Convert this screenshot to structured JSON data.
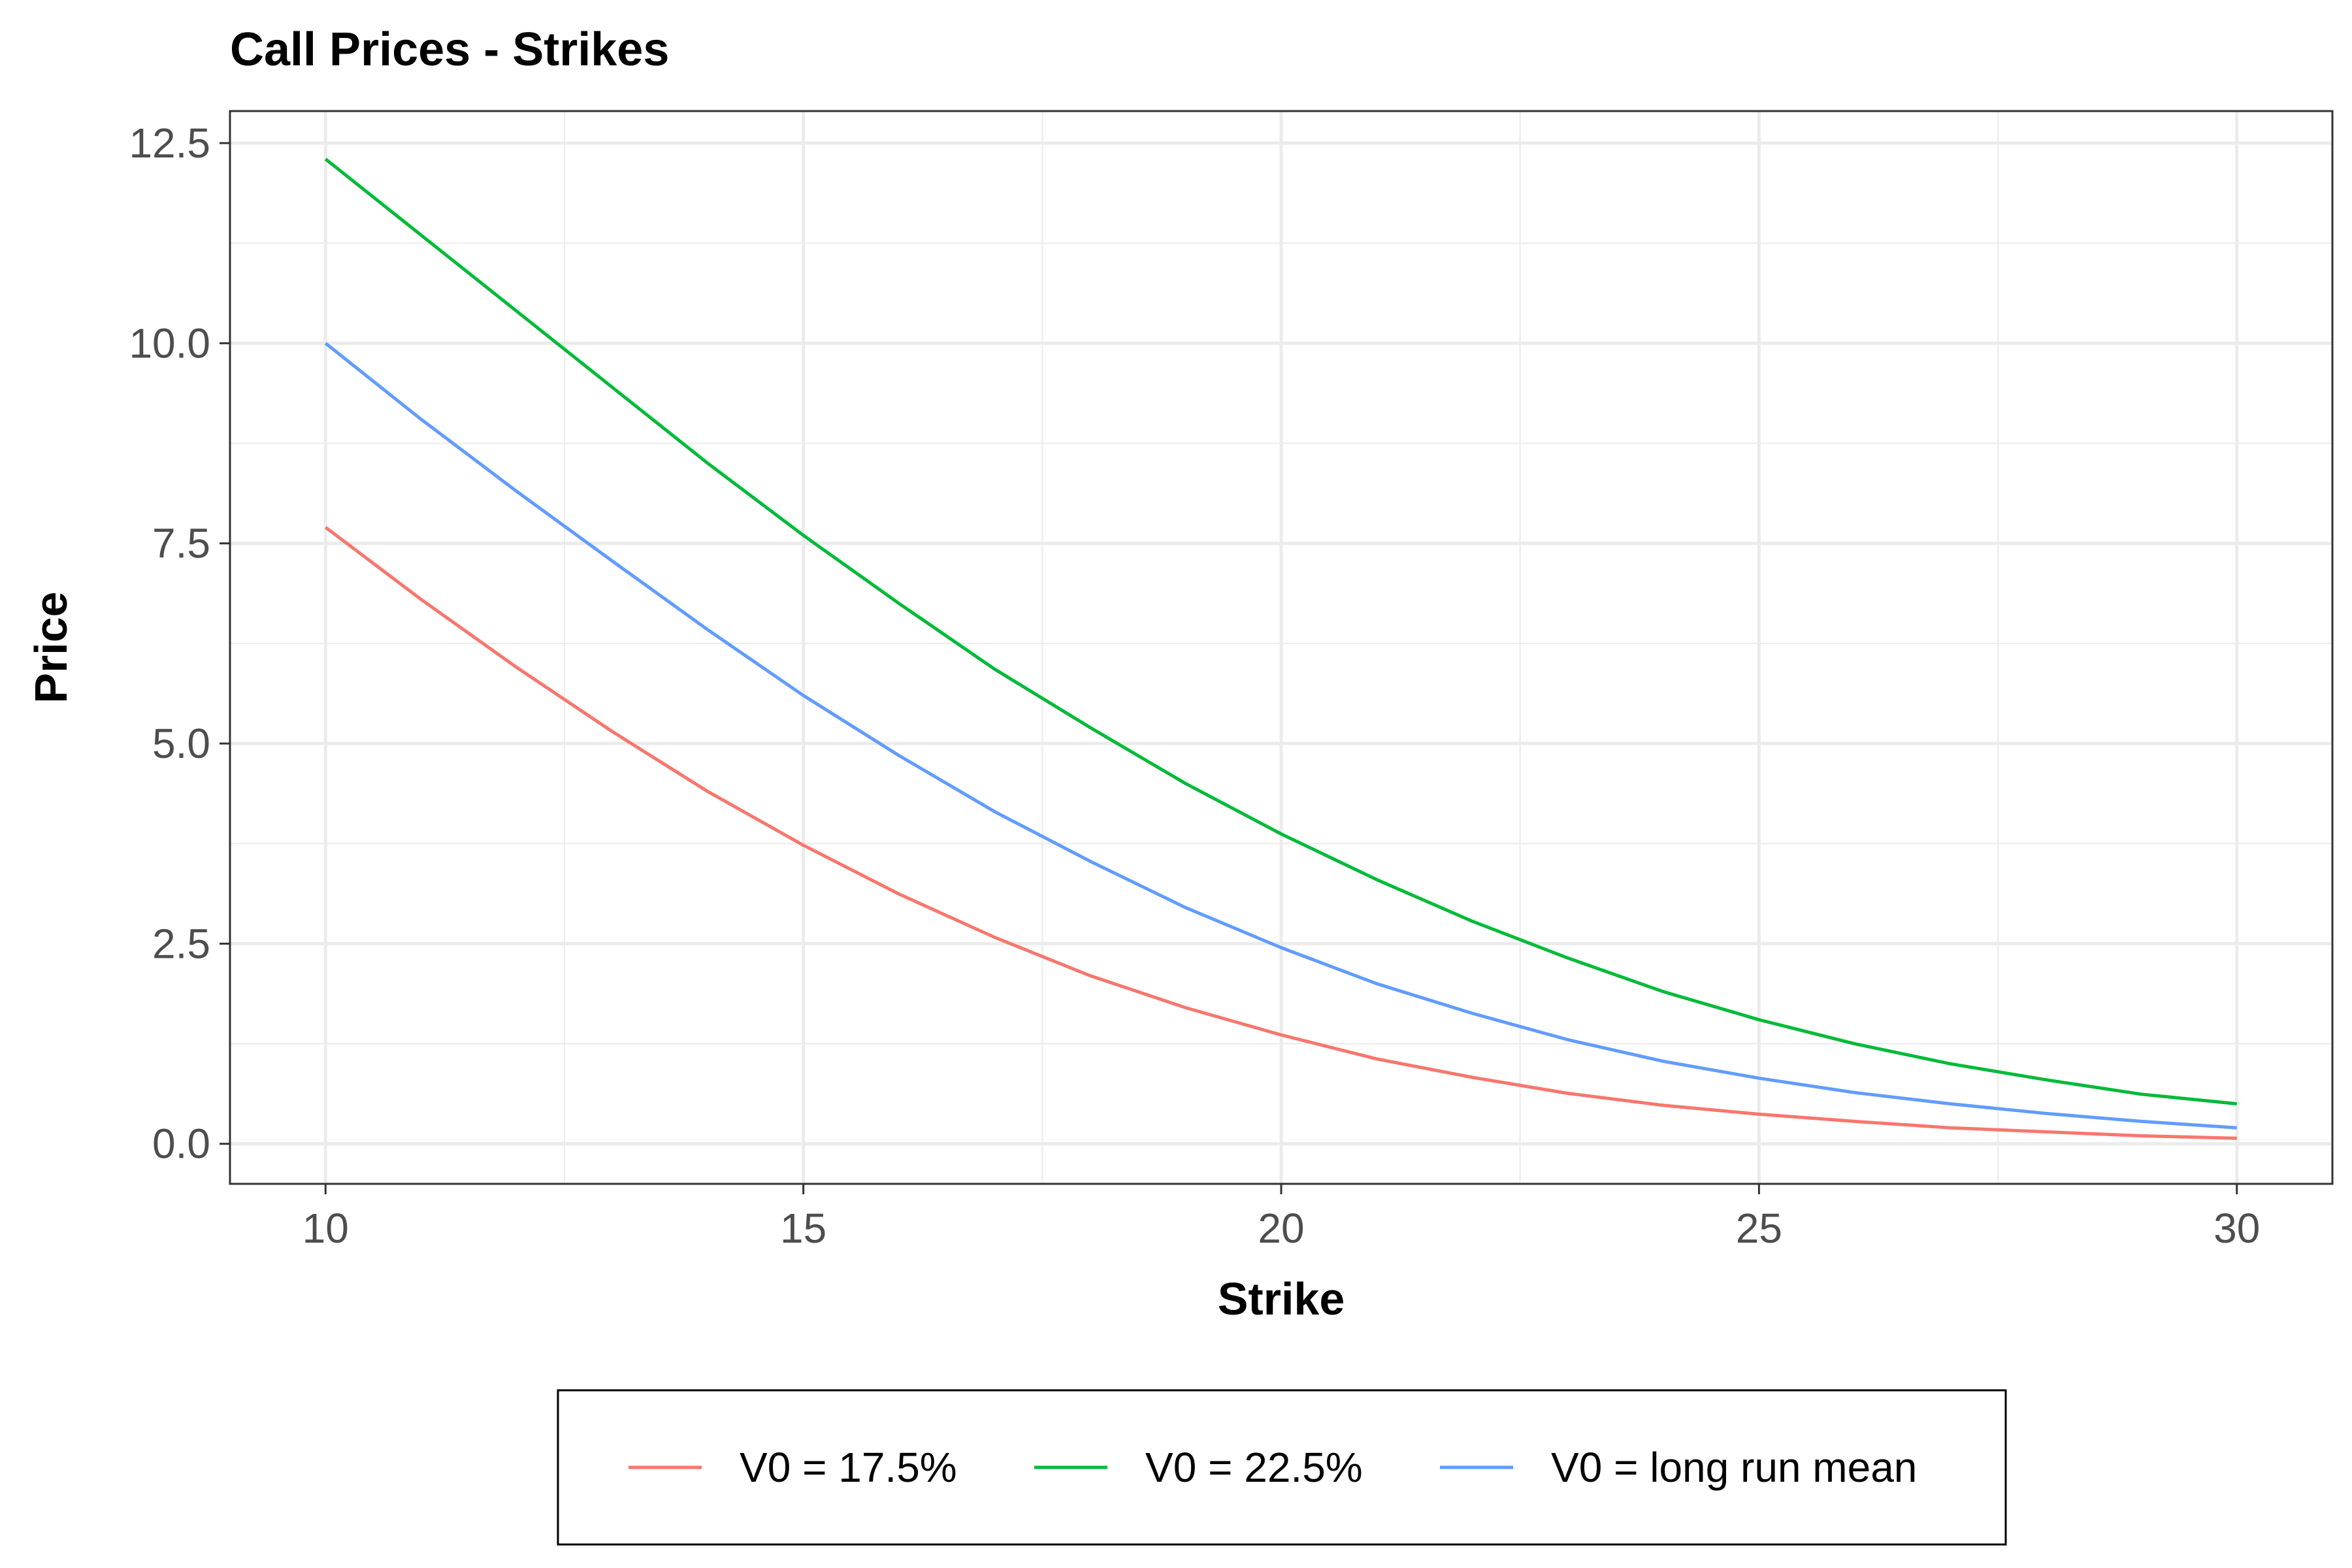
{
  "chart_data": {
    "type": "line",
    "title": "Call Prices - Strikes",
    "xlabel": "Strike",
    "ylabel": "Price",
    "xlim": [
      9,
      31
    ],
    "ylim": [
      -0.5,
      12.9
    ],
    "x_major_ticks": [
      10,
      15,
      20,
      25,
      30
    ],
    "x_minor_ticks": [
      12.5,
      17.5,
      22.5,
      27.5
    ],
    "y_major_ticks": [
      0,
      2.5,
      5,
      7.5,
      10,
      12.5
    ],
    "y_major_labels": [
      "0.0",
      "2.5",
      "5.0",
      "7.5",
      "10.0",
      "12.5"
    ],
    "y_minor_ticks": [
      1.25,
      3.75,
      6.25,
      8.75,
      11.25
    ],
    "grid": true,
    "legend_position": "bottom",
    "x": [
      10,
      11,
      12,
      13,
      14,
      15,
      16,
      17,
      18,
      19,
      20,
      21,
      22,
      23,
      24,
      25,
      26,
      27,
      28,
      29,
      30
    ],
    "series": [
      {
        "name": "V0 = 17.5%",
        "color": "#F8766D",
        "values": [
          7.7,
          6.8,
          5.95,
          5.15,
          4.4,
          3.73,
          3.12,
          2.58,
          2.1,
          1.7,
          1.36,
          1.06,
          0.83,
          0.63,
          0.48,
          0.37,
          0.28,
          0.2,
          0.15,
          0.1,
          0.07
        ]
      },
      {
        "name": "V0 = 22.5%",
        "color": "#00BA38",
        "values": [
          12.3,
          11.35,
          10.4,
          9.45,
          8.5,
          7.6,
          6.75,
          5.93,
          5.2,
          4.5,
          3.87,
          3.3,
          2.78,
          2.32,
          1.9,
          1.55,
          1.25,
          1.0,
          0.8,
          0.62,
          0.5
        ]
      },
      {
        "name": "V0 = long run mean",
        "color": "#619CFF",
        "values": [
          10.0,
          9.05,
          8.15,
          7.28,
          6.42,
          5.6,
          4.85,
          4.15,
          3.53,
          2.95,
          2.45,
          2.0,
          1.63,
          1.3,
          1.03,
          0.82,
          0.64,
          0.5,
          0.38,
          0.28,
          0.2
        ]
      }
    ]
  }
}
